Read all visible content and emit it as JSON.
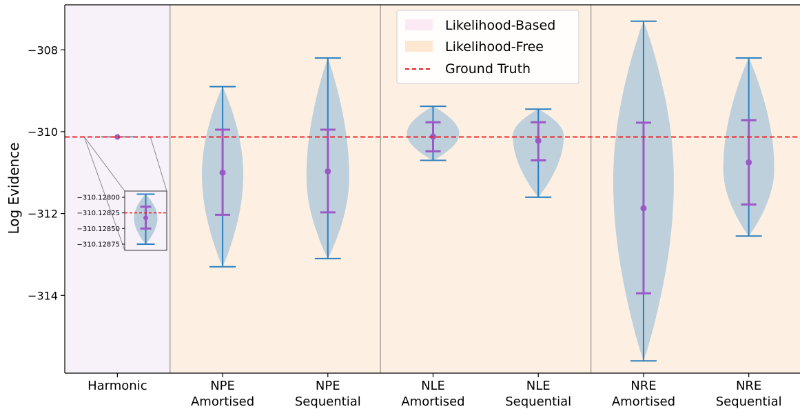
{
  "chart_data": {
    "type": "violin",
    "title": "",
    "xlabel": "",
    "ylabel": "Log Evidence",
    "ylim": [
      -315.9,
      -306.9
    ],
    "yticks": [
      -314,
      -312,
      -310,
      -308
    ],
    "ytick_labels": [
      "−314",
      "−312",
      "∐310",
      "−308"
    ],
    "categories": [
      [
        "Harmonic"
      ],
      [
        "NPE",
        "Amortised"
      ],
      [
        "NPE",
        "Sequential"
      ],
      [
        "NLE",
        "Amortised"
      ],
      [
        "NLE",
        "Sequential"
      ],
      [
        "NRE",
        "Amortised"
      ],
      [
        "NRE",
        "Sequential"
      ]
    ],
    "groups": [
      "likelihood-based",
      "likelihood-free",
      "likelihood-free",
      "likelihood-free",
      "likelihood-free",
      "likelihood-free",
      "likelihood-free"
    ],
    "stats": [
      {
        "min": -310.12875,
        "q1": -310.1285,
        "median": -310.12833,
        "q3": -310.12815,
        "max": -310.12795
      },
      {
        "min": -313.3,
        "q1": -312.03,
        "median": -311.0,
        "q3": -309.95,
        "max": -308.9
      },
      {
        "min": -313.1,
        "q1": -311.97,
        "median": -310.97,
        "q3": -309.95,
        "max": -308.2
      },
      {
        "min": -310.7,
        "q1": -310.48,
        "median": -310.12,
        "q3": -309.77,
        "max": -309.38
      },
      {
        "min": -311.6,
        "q1": -310.7,
        "median": -310.22,
        "q3": -309.77,
        "max": -309.45
      },
      {
        "min": -315.6,
        "q1": -313.95,
        "median": -311.87,
        "q3": -309.78,
        "max": -307.3
      },
      {
        "min": -312.55,
        "q1": -311.78,
        "median": -310.75,
        "q3": -309.72,
        "max": -308.2
      }
    ],
    "ground_truth": -310.12825,
    "legend": {
      "placement": "top-center",
      "entries": [
        "Likelihood-Based",
        "Likelihood-Free",
        "Ground Truth"
      ]
    },
    "inset": {
      "yticks": [
        -310.128,
        -310.12825,
        -310.1285,
        -310.12875
      ],
      "ytick_labels": [
        "−310.12800",
        "−310.12825",
        "−310.12850",
        "−310.12875"
      ]
    },
    "grid": false,
    "colors": {
      "likelihood_based_bg": "#f7f1fa",
      "likelihood_free_bg": "#fdf0e3",
      "violin_fill": "#b9cddb",
      "whisker": "#2a7fc0",
      "quartile": "#9b59c6",
      "ground_truth": "#ee1c1c",
      "legend_based_swatch": "#fbe9f3",
      "legend_free_swatch": "#fde7d1"
    }
  }
}
